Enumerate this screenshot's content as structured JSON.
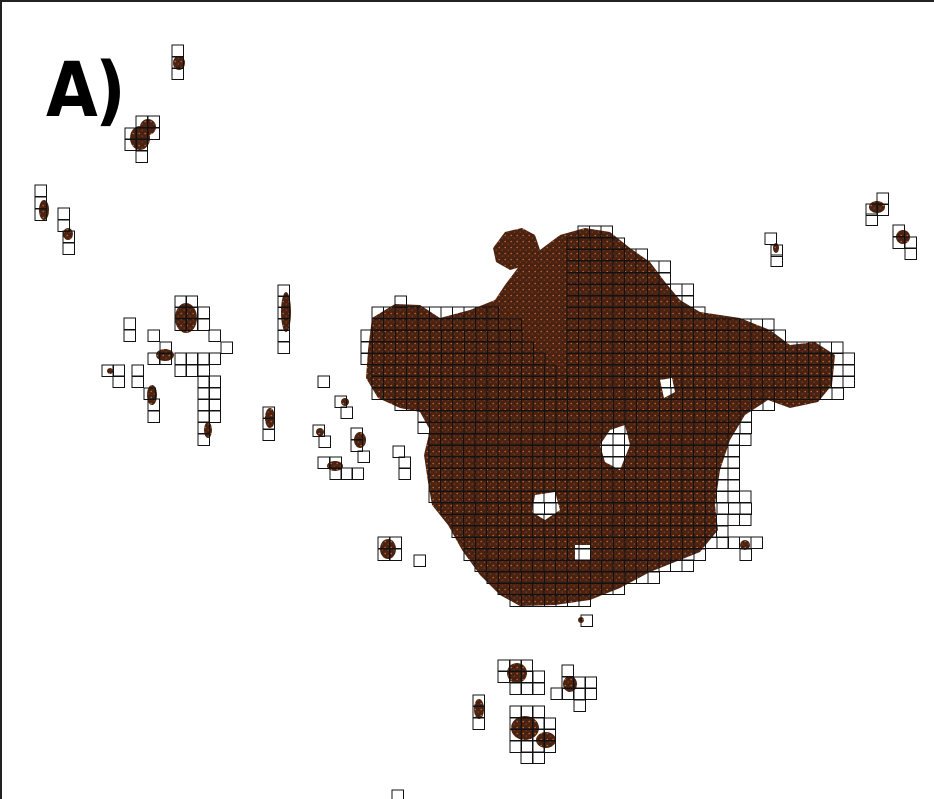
{
  "panel_label": "A)",
  "colors": {
    "point_dark": "#3d1c10",
    "point_mid": "#5a2a14",
    "point_accent": "#c8662a",
    "grid_stroke": "#111111",
    "background": "#ffffff"
  }
}
